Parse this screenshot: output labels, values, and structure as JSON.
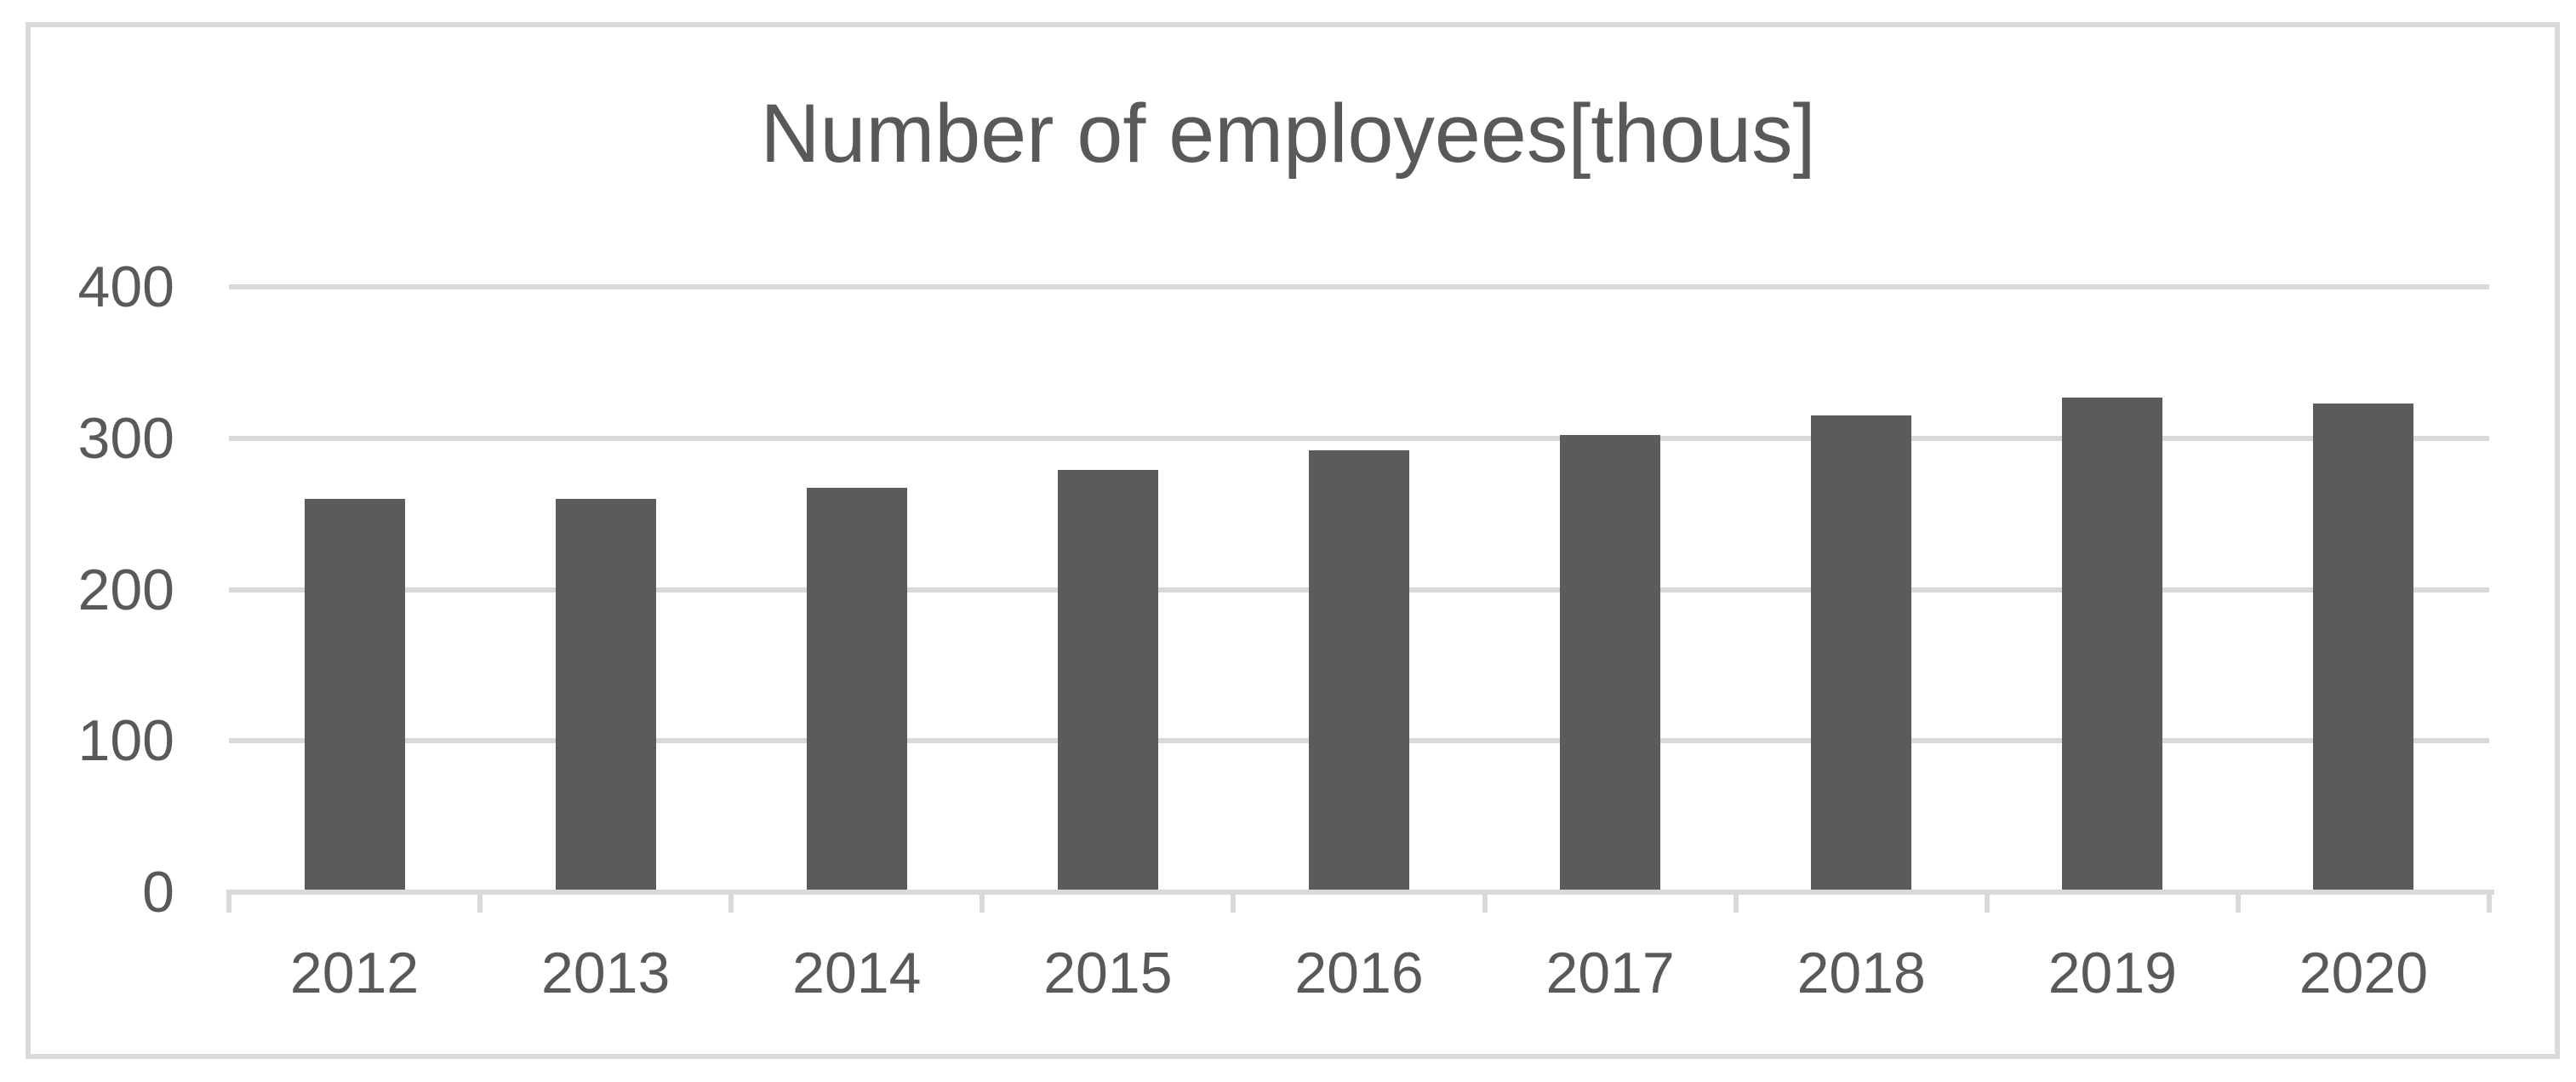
{
  "chart_data": {
    "type": "bar",
    "title": "Number of employees[thous]",
    "categories": [
      "2012",
      "2013",
      "2014",
      "2015",
      "2016",
      "2017",
      "2018",
      "2019",
      "2020"
    ],
    "values": [
      260,
      260,
      267,
      279,
      292,
      302,
      315,
      327,
      323
    ],
    "xlabel": "",
    "ylabel": "",
    "ylim": [
      0,
      400
    ],
    "yticks": [
      0,
      100,
      200,
      300,
      400
    ],
    "grid": "horizontal-major",
    "legend": "none",
    "colors": {
      "bar": "#5B5B5B",
      "gridline": "#D9D9D9",
      "axis": "#D9D9D9",
      "tick": "#D9D9D9",
      "frame_border": "#D9D9D9",
      "text": "#595959",
      "background": "#FFFFFF"
    }
  }
}
